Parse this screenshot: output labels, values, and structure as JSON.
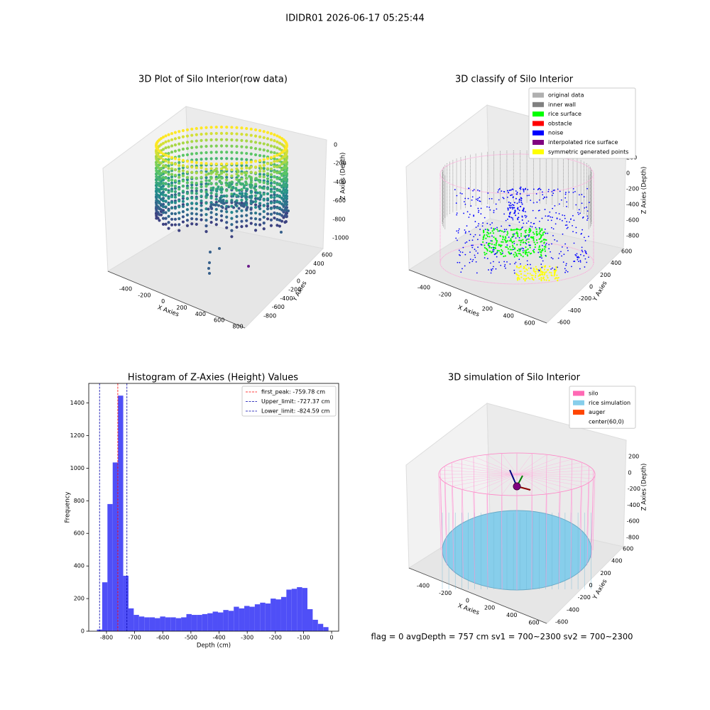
{
  "suptitle": "IDIDR01 2026-06-17 05:25:44",
  "status_text": "flag = 0     avgDepth = 757 cm  sv1 = 700~2300  sv2 = 700~2300",
  "chart_data": [
    {
      "type": "scatter3d",
      "title": "3D Plot of Silo Interior(row data)",
      "xlabel": "X Axies",
      "ylabel": "Y Axies",
      "zlabel": "Z Axies (Depth)",
      "xticks": [
        -400,
        -200,
        0,
        200,
        400,
        600,
        800
      ],
      "yticks": [
        600,
        400,
        200,
        0,
        -200,
        -400,
        -600,
        -800
      ],
      "zticks": [
        0,
        -200,
        -400,
        -600,
        -800,
        -1000
      ]
    },
    {
      "type": "classify3d",
      "title": "3D classify of Silo Interior",
      "xlabel": "X Axies",
      "ylabel": "Y Axies",
      "zlabel": "Z Axies (Depth)",
      "xticks": [
        -400,
        -200,
        0,
        200,
        400,
        600
      ],
      "yticks": [
        600,
        400,
        200,
        0,
        -200,
        -400,
        -600
      ],
      "zticks": [
        200,
        0,
        -200,
        -400,
        -600,
        -800
      ],
      "legend": [
        {
          "name": "original data",
          "color": "#b0b0b0"
        },
        {
          "name": "inner wall",
          "color": "#808080"
        },
        {
          "name": "rice surface",
          "color": "#00ff00"
        },
        {
          "name": "obstacle",
          "color": "#ff0000"
        },
        {
          "name": "noise",
          "color": "#0000ff"
        },
        {
          "name": "interpolated rice surface",
          "color": "#800080"
        },
        {
          "name": "symmetric generated points",
          "color": "#ffff00"
        }
      ]
    },
    {
      "type": "histogram",
      "title": "Histogram of Z-Axies (Height) Values",
      "xlabel": "Depth (cm)",
      "ylabel": "Frequency",
      "color": "#4f4ff7",
      "bins": [
        -834.0,
        -815.3,
        -796.6,
        -777.9,
        -759.2,
        -740.5,
        -721.8,
        -703.1,
        -684.4,
        -665.7,
        -647.0,
        -628.3,
        -609.6,
        -590.9,
        -572.2,
        -553.5,
        -534.8,
        -516.1,
        -497.4,
        -478.7,
        -460.0,
        -441.3,
        -422.6,
        -403.9,
        -385.2,
        -366.5,
        -347.8,
        -329.1,
        -310.4,
        -291.7,
        -273.0,
        -254.3,
        -235.6,
        -216.9,
        -198.2,
        -179.5,
        -160.8,
        -142.1,
        -123.4,
        -104.7,
        -86.0,
        -67.3,
        -48.6,
        -29.9,
        -11.2
      ],
      "counts": [
        10,
        300,
        780,
        1035,
        1445,
        340,
        140,
        100,
        90,
        85,
        85,
        80,
        90,
        85,
        85,
        80,
        85,
        105,
        100,
        100,
        105,
        110,
        120,
        115,
        130,
        125,
        150,
        140,
        155,
        150,
        165,
        175,
        170,
        200,
        195,
        210,
        255,
        260,
        270,
        265,
        135,
        70,
        45,
        25
      ],
      "xlim": [
        -863,
        25
      ],
      "ylim": [
        0,
        1520
      ],
      "xticks": [
        -800,
        -700,
        -600,
        -500,
        -400,
        -300,
        -200,
        -100,
        0
      ],
      "yticks": [
        0,
        200,
        400,
        600,
        800,
        1000,
        1200,
        1400
      ],
      "vlines": [
        {
          "name": "first_peak: -759.78 cm",
          "value": -759.78,
          "color": "#ff0000"
        },
        {
          "name": "Upper_limit: -727.37 cm",
          "value": -727.37,
          "color": "#0000aa"
        },
        {
          "name": "Lower_limit: -824.59 cm",
          "value": -824.59,
          "color": "#0000aa"
        }
      ],
      "legend_position": "upper right"
    },
    {
      "type": "surface3d",
      "title": "3D simulation of Silo Interior",
      "xlabel": "X Axies",
      "ylabel": "Y Axies",
      "zlabel": "Z Axies (Depth)",
      "xticks": [
        -400,
        -200,
        0,
        200,
        400,
        600
      ],
      "yticks": [
        600,
        400,
        200,
        0,
        -200,
        -400,
        -600
      ],
      "zticks": [
        200,
        0,
        -200,
        -400,
        -600,
        -800
      ],
      "legend": [
        {
          "name": "silo",
          "color": "#ff69b4"
        },
        {
          "name": "rice simulation",
          "color": "#87ceeb"
        },
        {
          "name": "auger",
          "color": "#ff4500"
        },
        {
          "name": "center(60,0)",
          "color": "#ffffff"
        }
      ]
    }
  ]
}
